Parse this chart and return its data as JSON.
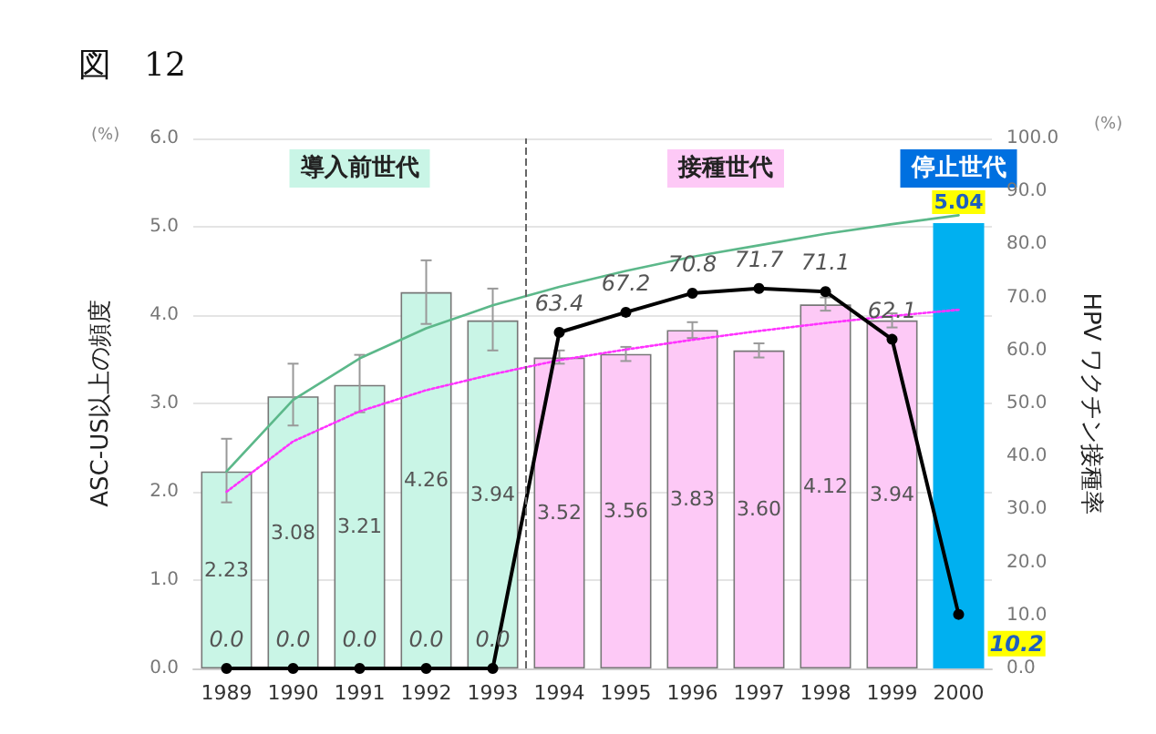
{
  "chart_data": {
    "type": "bar",
    "title": "図　12",
    "ylabel": "ASC-US以上の頻度",
    "y2label": "HPV ワクチン接種率",
    "annotations": [
      "導入前世代",
      "接種世代",
      "停止世代",
      "(%)",
      "(%)"
    ],
    "x": [
      1989,
      1990,
      1991,
      1992,
      1993,
      1994,
      1995,
      1996,
      1997,
      1998,
      1999,
      2000
    ],
    "xlim": [
      1988.5,
      2000.5
    ],
    "xticks": [
      1989,
      1990,
      1991,
      1992,
      1993,
      1994,
      1995,
      1996,
      1997,
      1998,
      1999,
      2000
    ],
    "ylim": [
      0,
      6
    ],
    "yticks": [
      {
        "value": 0,
        "label": "0.0"
      },
      {
        "value": 1,
        "label": "1.0"
      },
      {
        "value": 2,
        "label": "2.0"
      },
      {
        "value": 3,
        "label": "3.0"
      },
      {
        "value": 4,
        "label": "4.0"
      },
      {
        "value": 5,
        "label": "5.0"
      },
      {
        "value": 6,
        "label": "6.0"
      }
    ],
    "y2lim": [
      0,
      100
    ],
    "y2ticks": [
      {
        "value": 0,
        "label": "0.0"
      },
      {
        "value": 10,
        "label": "10.0"
      },
      {
        "value": 20,
        "label": "20.0"
      },
      {
        "value": 30,
        "label": "30.0"
      },
      {
        "value": 40,
        "label": "40.0"
      },
      {
        "value": 50,
        "label": "50.0"
      },
      {
        "value": 60,
        "label": "60.0"
      },
      {
        "value": 70,
        "label": "70.0"
      },
      {
        "value": 80,
        "label": "80.0"
      },
      {
        "value": 90,
        "label": "90.0"
      },
      {
        "value": 100,
        "label": "100.0"
      }
    ],
    "grid": "y",
    "ref_lines": [
      {
        "axis": "x",
        "value": 1993.5,
        "line_style": "dashed",
        "color": "#666666"
      }
    ],
    "series": [
      {
        "values": [
          2.23,
          3.08,
          3.21,
          4.26,
          3.94,
          3.52,
          3.56,
          3.83,
          3.6,
          4.12,
          3.94,
          5.04
        ],
        "value_labels": [
          "2.23",
          "3.08",
          "3.21",
          "4.26",
          "3.94",
          "3.52",
          "3.56",
          "3.83",
          "3.60",
          "4.12",
          "3.94",
          "5.04"
        ],
        "colors": [
          "#c9f5e6",
          "#c9f5e6",
          "#c9f5e6",
          "#c9f5e6",
          "#c9f5e6",
          "#fdc9f6",
          "#fdc9f6",
          "#fdc9f6",
          "#fdc9f6",
          "#fdc9f6",
          "#fdc9f6",
          "#00b0f0"
        ],
        "errors": [
          [
            1.88,
            2.6
          ],
          [
            2.75,
            3.45
          ],
          [
            2.9,
            3.55
          ],
          [
            3.9,
            4.62
          ],
          [
            3.6,
            4.3
          ],
          [
            3.45,
            3.6
          ],
          [
            3.48,
            3.64
          ],
          [
            3.74,
            3.92
          ],
          [
            3.52,
            3.68
          ],
          [
            4.05,
            4.2
          ],
          [
            3.86,
            4.02
          ],
          null
        ]
      },
      {
        "type": "line",
        "axis": "y2",
        "color": "#000000",
        "marker": "circle",
        "line_style": "solid",
        "values": [
          0.0,
          0.0,
          0.0,
          0.0,
          0.0,
          63.4,
          67.2,
          70.8,
          71.7,
          71.1,
          62.1,
          10.2
        ],
        "value_labels": [
          "0.0",
          "0.0",
          "0.0",
          "0.0",
          "0.0",
          "63.4",
          "67.2",
          "70.8",
          "71.7",
          "71.1",
          "62.1",
          "10.2"
        ]
      },
      {
        "type": "line",
        "color": "#5cb88a",
        "marker": "none",
        "line_style": "solid",
        "values": [
          2.23,
          3.04,
          3.51,
          3.85,
          4.11,
          4.32,
          4.5,
          4.66,
          4.79,
          4.92,
          5.03,
          5.13
        ]
      },
      {
        "type": "line",
        "color": "#ff33ff",
        "marker": "none",
        "line_style": "dotted",
        "values": [
          2.0,
          2.57,
          2.91,
          3.15,
          3.33,
          3.49,
          3.61,
          3.72,
          3.82,
          3.91,
          3.99,
          4.06
        ]
      }
    ]
  }
}
